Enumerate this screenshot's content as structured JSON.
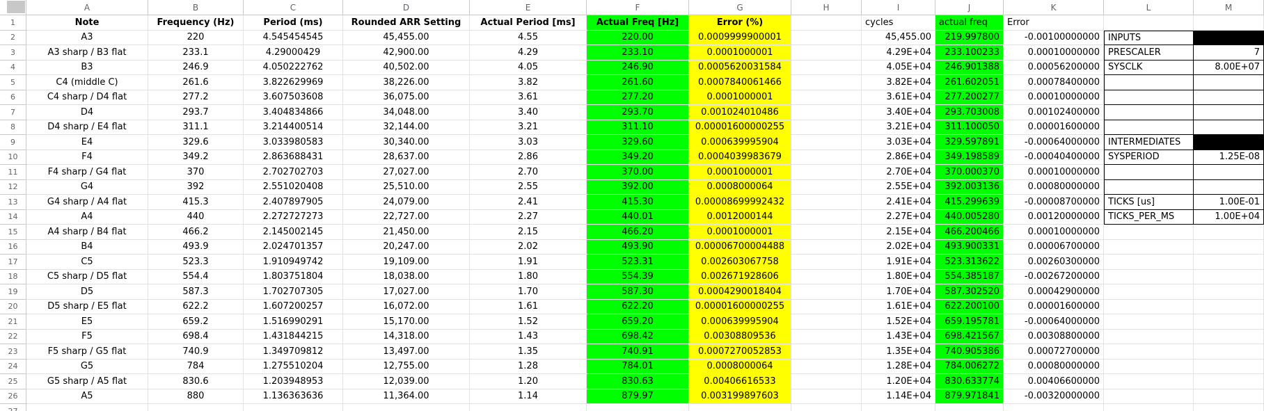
{
  "grid": {
    "column_letters": [
      "A",
      "B",
      "C",
      "D",
      "E",
      "F",
      "G",
      "H",
      "I",
      "J",
      "K",
      "L",
      "M"
    ],
    "first_row_number": 1,
    "last_row_number": 27,
    "colors": {
      "highlight_green": "#00ff00",
      "highlight_yellow": "#ffff00",
      "boxed_border": "#000000",
      "black_fill": "#000000",
      "header_text": "#5f6368"
    },
    "header_row": {
      "note": "Note",
      "frequency_hz": "Frequency (Hz)",
      "period_ms": "Period (ms)",
      "rounded_arr": "Rounded ARR Setting",
      "actual_period_ms": "Actual Period [ms]",
      "actual_freq_hz": "Actual Freq [Hz]",
      "error_pct": "Error (%)",
      "h": "",
      "cycles": "cycles",
      "actual_freq2": "actual freq",
      "error2": "Error",
      "l_label": "",
      "m_value": ""
    },
    "rows": [
      {
        "n": 2,
        "note": "A3",
        "frequency_hz": "220",
        "period_ms": "4.545454545",
        "rounded_arr": "45,455.00",
        "actual_period_ms": "4.55",
        "actual_freq_hz": "220.00",
        "error_pct": "0.0009999900001",
        "cycles": "45,455.00",
        "actual_freq2": "219.997800",
        "error2": "-0.00100000000",
        "l_label": "INPUTS",
        "m_value": "",
        "lm_boxed": true,
        "m_black": true
      },
      {
        "n": 3,
        "note": "A3 sharp / B3 flat",
        "frequency_hz": "233.1",
        "period_ms": "4.29000429",
        "rounded_arr": "42,900.00",
        "actual_period_ms": "4.29",
        "actual_freq_hz": "233.10",
        "error_pct": "0.0001000001",
        "cycles": "4.29E+04",
        "actual_freq2": "233.100233",
        "error2": "0.00010000000",
        "l_label": "PRESCALER",
        "m_value": "7",
        "lm_boxed": true
      },
      {
        "n": 4,
        "note": "B3",
        "frequency_hz": "246.9",
        "period_ms": "4.050222762",
        "rounded_arr": "40,502.00",
        "actual_period_ms": "4.05",
        "actual_freq_hz": "246.90",
        "error_pct": "0.0005620031584",
        "cycles": "4.05E+04",
        "actual_freq2": "246.901388",
        "error2": "0.00056200000",
        "l_label": "SYSCLK",
        "m_value": "8.00E+07",
        "lm_boxed": true
      },
      {
        "n": 5,
        "note": "C4 (middle C)",
        "frequency_hz": "261.6",
        "period_ms": "3.822629969",
        "rounded_arr": "38,226.00",
        "actual_period_ms": "3.82",
        "actual_freq_hz": "261.60",
        "error_pct": "0.0007840061466",
        "cycles": "3.82E+04",
        "actual_freq2": "261.602051",
        "error2": "0.00078400000",
        "l_label": "",
        "m_value": "",
        "lm_boxed": true
      },
      {
        "n": 6,
        "note": "C4 sharp / D4 flat",
        "frequency_hz": "277.2",
        "period_ms": "3.607503608",
        "rounded_arr": "36,075.00",
        "actual_period_ms": "3.61",
        "actual_freq_hz": "277.20",
        "error_pct": "0.0001000001",
        "cycles": "3.61E+04",
        "actual_freq2": "277.200277",
        "error2": "0.00010000000",
        "l_label": "",
        "m_value": "",
        "lm_boxed": true
      },
      {
        "n": 7,
        "note": "D4",
        "frequency_hz": "293.7",
        "period_ms": "3.404834866",
        "rounded_arr": "34,048.00",
        "actual_period_ms": "3.40",
        "actual_freq_hz": "293.70",
        "error_pct": "0.001024010486",
        "cycles": "3.40E+04",
        "actual_freq2": "293.703008",
        "error2": "0.00102400000",
        "l_label": "",
        "m_value": "",
        "lm_boxed": true
      },
      {
        "n": 8,
        "note": "D4 sharp / E4 flat",
        "frequency_hz": "311.1",
        "period_ms": "3.214400514",
        "rounded_arr": "32,144.00",
        "actual_period_ms": "3.21",
        "actual_freq_hz": "311.10",
        "error_pct": "0.00001600000255",
        "cycles": "3.21E+04",
        "actual_freq2": "311.100050",
        "error2": "0.00001600000",
        "l_label": "",
        "m_value": "",
        "lm_boxed": true
      },
      {
        "n": 9,
        "note": "E4",
        "frequency_hz": "329.6",
        "period_ms": "3.033980583",
        "rounded_arr": "30,340.00",
        "actual_period_ms": "3.03",
        "actual_freq_hz": "329.60",
        "error_pct": "0.000639995904",
        "cycles": "3.03E+04",
        "actual_freq2": "329.597891",
        "error2": "-0.00064000000",
        "l_label": "INTERMEDIATES",
        "m_value": "",
        "lm_boxed": true,
        "m_black": true
      },
      {
        "n": 10,
        "note": "F4",
        "frequency_hz": "349.2",
        "period_ms": "2.863688431",
        "rounded_arr": "28,637.00",
        "actual_period_ms": "2.86",
        "actual_freq_hz": "349.20",
        "error_pct": "0.0004039983679",
        "cycles": "2.86E+04",
        "actual_freq2": "349.198589",
        "error2": "-0.00040400000",
        "l_label": "SYSPERIOD",
        "m_value": "1.25E-08",
        "lm_boxed": true
      },
      {
        "n": 11,
        "note": "F4 sharp / G4 flat",
        "frequency_hz": "370",
        "period_ms": "2.702702703",
        "rounded_arr": "27,027.00",
        "actual_period_ms": "2.70",
        "actual_freq_hz": "370.00",
        "error_pct": "0.0001000001",
        "cycles": "2.70E+04",
        "actual_freq2": "370.000370",
        "error2": "0.00010000000",
        "l_label": "",
        "m_value": "",
        "lm_boxed": true
      },
      {
        "n": 12,
        "note": "G4",
        "frequency_hz": "392",
        "period_ms": "2.551020408",
        "rounded_arr": "25,510.00",
        "actual_period_ms": "2.55",
        "actual_freq_hz": "392.00",
        "error_pct": "0.0008000064",
        "cycles": "2.55E+04",
        "actual_freq2": "392.003136",
        "error2": "0.00080000000",
        "l_label": "",
        "m_value": "",
        "lm_boxed": true
      },
      {
        "n": 13,
        "note": "G4 sharp / A4 flat",
        "frequency_hz": "415.3",
        "period_ms": "2.407897905",
        "rounded_arr": "24,079.00",
        "actual_period_ms": "2.41",
        "actual_freq_hz": "415.30",
        "error_pct": "0.00008699992432",
        "cycles": "2.41E+04",
        "actual_freq2": "415.299639",
        "error2": "-0.00008700000",
        "l_label": "TICKS [us]",
        "m_value": "1.00E-01",
        "lm_boxed": true
      },
      {
        "n": 14,
        "note": "A4",
        "frequency_hz": "440",
        "period_ms": "2.272727273",
        "rounded_arr": "22,727.00",
        "actual_period_ms": "2.27",
        "actual_freq_hz": "440.01",
        "error_pct": "0.0012000144",
        "cycles": "2.27E+04",
        "actual_freq2": "440.005280",
        "error2": "0.00120000000",
        "l_label": "TICKS_PER_MS",
        "m_value": "1.00E+04",
        "lm_boxed": true
      },
      {
        "n": 15,
        "note": "A4 sharp / B4 flat",
        "frequency_hz": "466.2",
        "period_ms": "2.145002145",
        "rounded_arr": "21,450.00",
        "actual_period_ms": "2.15",
        "actual_freq_hz": "466.20",
        "error_pct": "0.0001000001",
        "cycles": "2.15E+04",
        "actual_freq2": "466.200466",
        "error2": "0.00010000000",
        "l_label": "",
        "m_value": ""
      },
      {
        "n": 16,
        "note": "B4",
        "frequency_hz": "493.9",
        "period_ms": "2.024701357",
        "rounded_arr": "20,247.00",
        "actual_period_ms": "2.02",
        "actual_freq_hz": "493.90",
        "error_pct": "0.00006700004488",
        "cycles": "2.02E+04",
        "actual_freq2": "493.900331",
        "error2": "0.00006700000",
        "l_label": "",
        "m_value": ""
      },
      {
        "n": 17,
        "note": "C5",
        "frequency_hz": "523.3",
        "period_ms": "1.910949742",
        "rounded_arr": "19,109.00",
        "actual_period_ms": "1.91",
        "actual_freq_hz": "523.31",
        "error_pct": "0.002603067758",
        "cycles": "1.91E+04",
        "actual_freq2": "523.313622",
        "error2": "0.00260300000",
        "l_label": "",
        "m_value": ""
      },
      {
        "n": 18,
        "note": "C5 sharp / D5 flat",
        "frequency_hz": "554.4",
        "period_ms": "1.803751804",
        "rounded_arr": "18,038.00",
        "actual_period_ms": "1.80",
        "actual_freq_hz": "554.39",
        "error_pct": "0.002671928606",
        "cycles": "1.80E+04",
        "actual_freq2": "554.385187",
        "error2": "-0.00267200000",
        "l_label": "",
        "m_value": ""
      },
      {
        "n": 19,
        "note": "D5",
        "frequency_hz": "587.3",
        "period_ms": "1.702707305",
        "rounded_arr": "17,027.00",
        "actual_period_ms": "1.70",
        "actual_freq_hz": "587.30",
        "error_pct": "0.0004290018404",
        "cycles": "1.70E+04",
        "actual_freq2": "587.302520",
        "error2": "0.00042900000",
        "l_label": "",
        "m_value": ""
      },
      {
        "n": 20,
        "note": "D5 sharp / E5 flat",
        "frequency_hz": "622.2",
        "period_ms": "1.607200257",
        "rounded_arr": "16,072.00",
        "actual_period_ms": "1.61",
        "actual_freq_hz": "622.20",
        "error_pct": "0.00001600000255",
        "cycles": "1.61E+04",
        "actual_freq2": "622.200100",
        "error2": "0.00001600000",
        "l_label": "",
        "m_value": ""
      },
      {
        "n": 21,
        "note": "E5",
        "frequency_hz": "659.2",
        "period_ms": "1.516990291",
        "rounded_arr": "15,170.00",
        "actual_period_ms": "1.52",
        "actual_freq_hz": "659.20",
        "error_pct": "0.000639995904",
        "cycles": "1.52E+04",
        "actual_freq2": "659.195781",
        "error2": "-0.00064000000",
        "l_label": "",
        "m_value": ""
      },
      {
        "n": 22,
        "note": "F5",
        "frequency_hz": "698.4",
        "period_ms": "1.431844215",
        "rounded_arr": "14,318.00",
        "actual_period_ms": "1.43",
        "actual_freq_hz": "698.42",
        "error_pct": "0.00308809536",
        "cycles": "1.43E+04",
        "actual_freq2": "698.421567",
        "error2": "0.00308800000",
        "l_label": "",
        "m_value": ""
      },
      {
        "n": 23,
        "note": "F5 sharp / G5 flat",
        "frequency_hz": "740.9",
        "period_ms": "1.349709812",
        "rounded_arr": "13,497.00",
        "actual_period_ms": "1.35",
        "actual_freq_hz": "740.91",
        "error_pct": "0.0007270052853",
        "cycles": "1.35E+04",
        "actual_freq2": "740.905386",
        "error2": "0.00072700000",
        "l_label": "",
        "m_value": ""
      },
      {
        "n": 24,
        "note": "G5",
        "frequency_hz": "784",
        "period_ms": "1.275510204",
        "rounded_arr": "12,755.00",
        "actual_period_ms": "1.28",
        "actual_freq_hz": "784.01",
        "error_pct": "0.0008000064",
        "cycles": "1.28E+04",
        "actual_freq2": "784.006272",
        "error2": "0.00080000000",
        "l_label": "",
        "m_value": ""
      },
      {
        "n": 25,
        "note": "G5 sharp / A5 flat",
        "frequency_hz": "830.6",
        "period_ms": "1.203948953",
        "rounded_arr": "12,039.00",
        "actual_period_ms": "1.20",
        "actual_freq_hz": "830.63",
        "error_pct": "0.00406616533",
        "cycles": "1.20E+04",
        "actual_freq2": "830.633774",
        "error2": "0.00406600000",
        "l_label": "",
        "m_value": ""
      },
      {
        "n": 26,
        "note": "A5",
        "frequency_hz": "880",
        "period_ms": "1.136363636",
        "rounded_arr": "11,364.00",
        "actual_period_ms": "1.14",
        "actual_freq_hz": "879.97",
        "error_pct": "0.003199897603",
        "cycles": "1.14E+04",
        "actual_freq2": "879.971841",
        "error2": "-0.00320000000",
        "l_label": "",
        "m_value": ""
      }
    ]
  }
}
